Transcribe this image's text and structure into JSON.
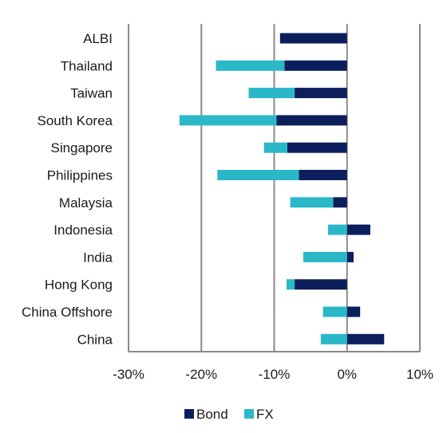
{
  "chart_data": {
    "type": "bar",
    "orientation": "horizontal",
    "stacked": true,
    "categories": [
      "ALBI",
      "Thailand",
      "Taiwan",
      "South Korea",
      "Singapore",
      "Philippines",
      "Malaysia",
      "Indonesia",
      "India",
      "Hong Kong",
      "China Offshore",
      "China"
    ],
    "series": [
      {
        "name": "Bond",
        "color": "#0c1f5c",
        "values": [
          -9.2,
          -8.6,
          -7.2,
          -9.7,
          -8.2,
          -6.6,
          -1.9,
          3.2,
          0.9,
          -7.2,
          1.8,
          5.1
        ]
      },
      {
        "name": "FX",
        "color": "#2ab8c9",
        "values": [
          0.0,
          -9.4,
          -6.3,
          -13.3,
          -3.2,
          -11.2,
          -5.9,
          -2.6,
          -6.0,
          -1.1,
          -3.3,
          -3.6
        ]
      }
    ],
    "xlim": [
      -30,
      10
    ],
    "xticks": [
      -30,
      -20,
      -10,
      0,
      10
    ],
    "tick_labels": [
      "-30%",
      "-20%",
      "-10%",
      "0%",
      "10%"
    ],
    "grid": "vertical",
    "legend_position": "bottom-center"
  }
}
